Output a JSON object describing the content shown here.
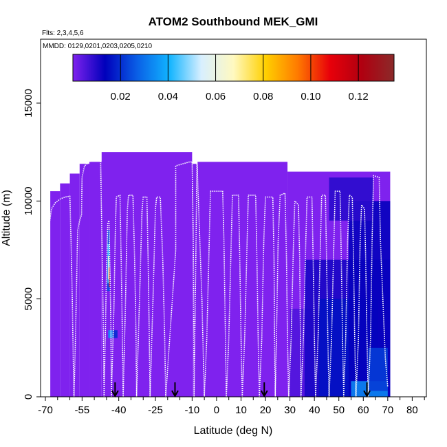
{
  "chart_data": {
    "type": "heatmap",
    "title": "ATOM2 Southbound MEK_GMI",
    "subtitle_flights": "Flts: 2,3,4,5,6",
    "subtitle_dates": "MMDD: 0129,0201,0203,0205,0210",
    "xlabel": "Latitude (deg N)",
    "ylabel": "Altitude (m)",
    "xlim": [
      -70,
      85
    ],
    "ylim": [
      0,
      17500
    ],
    "x_ticks": [
      -70,
      -55,
      -40,
      -25,
      -10,
      0,
      10,
      20,
      30,
      40,
      50,
      60,
      70,
      80
    ],
    "x_tick_labels": [
      "-70",
      "-55",
      "-40",
      "-25",
      "-10",
      "0",
      "10",
      "20",
      "30",
      "40",
      "50",
      "60",
      "70",
      "80"
    ],
    "x_minor_ticks": [
      -65,
      -60,
      -50,
      -45,
      -35,
      -30,
      -20,
      -15,
      -5,
      5,
      15,
      25,
      35,
      45,
      55,
      65,
      75,
      85
    ],
    "y_ticks": [
      0,
      5000,
      10000,
      15000
    ],
    "y_tick_labels": [
      "0",
      "5000",
      "10000",
      "15000"
    ],
    "colorbar": {
      "range": [
        0,
        0.135
      ],
      "ticks": [
        0.02,
        0.04,
        0.06,
        0.08,
        0.1,
        0.12
      ],
      "tick_labels": [
        "0.02",
        "0.04",
        "0.06",
        "0.08",
        "0.10",
        "0.12"
      ],
      "colors": [
        "#7f22ee",
        "#0000bb",
        "#0a5fe6",
        "#11b4ff",
        "#d8efff",
        "#fff9c0",
        "#ffd000",
        "#ff7a00",
        "#e8000a",
        "#b00010",
        "#8b2a2a"
      ]
    },
    "curtain_columns": [
      {
        "x0": -68,
        "x1": -64,
        "top": 10500
      },
      {
        "x0": -64,
        "x1": -60,
        "top": 10900
      },
      {
        "x0": -60,
        "x1": -56,
        "top": 11400
      },
      {
        "x0": -56,
        "x1": -52,
        "top": 11900
      },
      {
        "x0": -52,
        "x1": -47,
        "top": 12000
      },
      {
        "x0": -47,
        "x1": -10,
        "top": 12500
      },
      {
        "x0": -10,
        "x1": -8,
        "top": 11900
      },
      {
        "x0": -8,
        "x1": 29,
        "top": 12000
      },
      {
        "x0": 29,
        "x1": 71,
        "top": 11500
      }
    ],
    "value_patches": [
      {
        "x0": 30,
        "x1": 56,
        "y0": 0,
        "y1": 4500,
        "v": 0.005
      },
      {
        "x0": 36,
        "x1": 71,
        "y0": 0,
        "y1": 7000,
        "v": 0.011
      },
      {
        "x0": 42,
        "x1": 66,
        "y0": 0,
        "y1": 5000,
        "v": 0.016
      },
      {
        "x0": 54,
        "x1": 71,
        "y0": 0,
        "y1": 10000,
        "v": 0.013
      },
      {
        "x0": 46,
        "x1": 64,
        "y0": 9000,
        "y1": 11200,
        "v": 0.009
      },
      {
        "x0": 55,
        "x1": 70,
        "y0": 0,
        "y1": 800,
        "v": 0.033
      },
      {
        "x0": 62,
        "x1": 70,
        "y0": 300,
        "y1": 2500,
        "v": 0.022
      },
      {
        "x0": -44.3,
        "x1": -42.5,
        "y0": 3000,
        "y1": 3400,
        "v": 0.035
      },
      {
        "x0": -42.5,
        "x1": -40.5,
        "y0": 3000,
        "y1": 3400,
        "v": 0.02
      },
      {
        "x0": -44.8,
        "x1": -43.6,
        "y0": 5400,
        "y1": 8500,
        "v": 0.025
      },
      {
        "x0": -44.6,
        "x1": -43.8,
        "y0": 5800,
        "y1": 7800,
        "v": 0.045
      },
      {
        "x0": -44.4,
        "x1": -44.0,
        "y0": 6000,
        "y1": 7200,
        "v": 0.065
      },
      {
        "x0": -44.0,
        "x1": -43.7,
        "y0": 5600,
        "y1": 6600,
        "v": 0.11
      }
    ],
    "flight_track": [
      [
        -68.2,
        9000
      ],
      [
        -67.5,
        9600
      ],
      [
        -66,
        9900
      ],
      [
        -64,
        10100
      ],
      [
        -62,
        10200
      ],
      [
        -60,
        10250
      ],
      [
        -59.5,
        8000
      ],
      [
        -59,
        5000
      ],
      [
        -58.6,
        2000
      ],
      [
        -58.3,
        0
      ],
      [
        -57.8,
        2500
      ],
      [
        -57.2,
        6000
      ],
      [
        -56.8,
        8500
      ],
      [
        -56,
        9000
      ],
      [
        -55.2,
        9300
      ],
      [
        -55,
        11200
      ],
      [
        -54,
        11800
      ],
      [
        -52,
        12000
      ],
      [
        -50,
        12200
      ],
      [
        -48,
        12300
      ],
      [
        -47.5,
        12400
      ],
      [
        -47,
        9000
      ],
      [
        -46.5,
        5000
      ],
      [
        -46.2,
        2500
      ],
      [
        -46,
        0
      ],
      [
        -45.5,
        3000
      ],
      [
        -45,
        6500
      ],
      [
        -44.5,
        8900
      ],
      [
        -44,
        9000
      ],
      [
        -43.5,
        6000
      ],
      [
        -43.2,
        3500
      ],
      [
        -43,
        0
      ],
      [
        -42,
        4500
      ],
      [
        -41.4,
        8500
      ],
      [
        -41,
        10200
      ],
      [
        -39.5,
        10300
      ],
      [
        -39,
        7000
      ],
      [
        -38.5,
        3000
      ],
      [
        -38.2,
        0
      ],
      [
        -37.2,
        5000
      ],
      [
        -36.5,
        9500
      ],
      [
        -36,
        10300
      ],
      [
        -34.2,
        10300
      ],
      [
        -33.5,
        7000
      ],
      [
        -33,
        3500
      ],
      [
        -32.7,
        0
      ],
      [
        -31.5,
        5000
      ],
      [
        -30.5,
        9500
      ],
      [
        -30,
        10200
      ],
      [
        -28.5,
        10200
      ],
      [
        -28,
        7000
      ],
      [
        -27.5,
        3000
      ],
      [
        -27.2,
        0
      ],
      [
        -26,
        5000
      ],
      [
        -25,
        9600
      ],
      [
        -24.5,
        10200
      ],
      [
        -23,
        10200
      ],
      [
        -22,
        7000
      ],
      [
        -21.2,
        3000
      ],
      [
        -20.8,
        0
      ],
      [
        -16.7,
        7500
      ],
      [
        -16.7,
        11800
      ],
      [
        -11,
        12000
      ],
      [
        -10,
        12000
      ],
      [
        -9.5,
        8000
      ],
      [
        -9.3,
        3000
      ],
      [
        -9.2,
        0
      ],
      [
        -8,
        12000
      ],
      [
        -6,
        5000
      ],
      [
        -5,
        0
      ],
      [
        -4,
        3000
      ],
      [
        -3,
        8000
      ],
      [
        -2.5,
        10500
      ],
      [
        2.5,
        10500
      ],
      [
        3,
        8000
      ],
      [
        3.5,
        4000
      ],
      [
        4,
        0
      ],
      [
        5,
        3000
      ],
      [
        6,
        8000
      ],
      [
        6.5,
        10300
      ],
      [
        9,
        10300
      ],
      [
        9.5,
        7000
      ],
      [
        10,
        3000
      ],
      [
        10.5,
        0
      ],
      [
        11.5,
        3000
      ],
      [
        12.5,
        8000
      ],
      [
        13,
        10300
      ],
      [
        16,
        10300
      ],
      [
        16.5,
        7000
      ],
      [
        17,
        3000
      ],
      [
        17.5,
        0
      ],
      [
        18.5,
        3000
      ],
      [
        19.3,
        8000
      ],
      [
        20,
        10200
      ],
      [
        23,
        10200
      ],
      [
        23.5,
        7000
      ],
      [
        23.7,
        3000
      ],
      [
        24,
        0
      ],
      [
        24.5,
        3000
      ],
      [
        25.2,
        8000
      ],
      [
        26,
        10300
      ],
      [
        28,
        10400
      ],
      [
        28.6,
        7000
      ],
      [
        29,
        3000
      ],
      [
        29.5,
        0
      ],
      [
        30.5,
        3000
      ],
      [
        31.5,
        8000
      ],
      [
        32,
        10000
      ],
      [
        33.5,
        9800
      ],
      [
        34,
        7000
      ],
      [
        34.3,
        3000
      ],
      [
        34.5,
        0
      ],
      [
        35.5,
        3000
      ],
      [
        36.5,
        8000
      ],
      [
        37,
        10200
      ],
      [
        39,
        10200
      ],
      [
        39.5,
        7000
      ],
      [
        40,
        3000
      ],
      [
        40.5,
        0
      ],
      [
        41.5,
        3000
      ],
      [
        42.5,
        8000
      ],
      [
        43,
        10300
      ],
      [
        44.5,
        10300
      ],
      [
        45,
        7000
      ],
      [
        45.5,
        3000
      ],
      [
        46,
        0
      ],
      [
        47,
        3000
      ],
      [
        48,
        8000
      ],
      [
        48.5,
        10500
      ],
      [
        50.5,
        10500
      ],
      [
        51,
        7000
      ],
      [
        51.5,
        3000
      ],
      [
        52,
        0
      ],
      [
        52.8,
        3000
      ],
      [
        53.6,
        8000
      ],
      [
        54.3,
        10300
      ],
      [
        55.5,
        10200
      ],
      [
        56,
        7000
      ],
      [
        56.5,
        3000
      ],
      [
        57,
        0
      ],
      [
        58,
        3000
      ],
      [
        58.7,
        8000
      ],
      [
        59.3,
        9800
      ],
      [
        60.5,
        9600
      ],
      [
        61,
        7000
      ],
      [
        61.5,
        3000
      ],
      [
        62,
        0
      ],
      [
        63,
        3000
      ],
      [
        63.6,
        8000
      ],
      [
        64.2,
        11300
      ],
      [
        66.5,
        11200
      ],
      [
        67,
        8000
      ],
      [
        68,
        5000
      ],
      [
        69,
        2000
      ],
      [
        70,
        500
      ]
    ],
    "arrows": [
      {
        "lat": -41.5
      },
      {
        "lat": -17.0
      },
      {
        "lat": 19.5
      },
      {
        "lat": 61.5
      }
    ]
  }
}
